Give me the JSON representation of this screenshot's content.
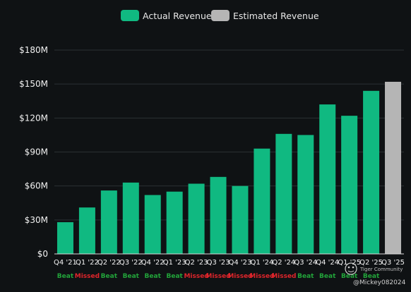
{
  "chart_data": {
    "type": "bar",
    "categories": [
      "Q4 '21",
      "Q1 '22",
      "Q2 '22",
      "Q3 '22",
      "Q4 '22",
      "Q1 '23",
      "Q2 '23",
      "Q3 '23",
      "Q4 '23",
      "Q1 '24",
      "Q2 '24",
      "Q3 '24",
      "Q4 '24",
      "Q1 '25",
      "Q2 '25",
      "Q3 '25"
    ],
    "series": [
      {
        "name": "Actual Revenue",
        "color": "#10b981",
        "values": [
          28,
          41,
          56,
          63,
          52,
          55,
          62,
          68,
          60,
          93,
          106,
          105,
          132,
          122,
          144,
          null
        ]
      },
      {
        "name": "Estimated Revenue",
        "color": "#b5b5b5",
        "values": [
          null,
          null,
          null,
          null,
          null,
          null,
          null,
          null,
          null,
          null,
          null,
          null,
          null,
          null,
          null,
          152
        ]
      }
    ],
    "status": [
      "Beat",
      "Missed",
      "Beat",
      "Beat",
      "Beat",
      "Beat",
      "Missed",
      "Missed",
      "Missed",
      "Missed",
      "Missed",
      "Beat",
      "Beat",
      "Beat",
      "Beat",
      ""
    ],
    "status_colors": {
      "Beat": "#22a43a",
      "Missed": "#e0252b"
    },
    "yticks": [
      0,
      30,
      60,
      90,
      120,
      150,
      180
    ],
    "ytick_labels": [
      "$0",
      "$30M",
      "$60M",
      "$90M",
      "$120M",
      "$150M",
      "$180M"
    ],
    "ylim": [
      0,
      180
    ],
    "grid": true,
    "legend_position": "top-center",
    "title": "",
    "xlabel": "",
    "ylabel": ""
  },
  "watermark": {
    "brand": "Tiger Community",
    "handle": "@Mickey082024"
  }
}
